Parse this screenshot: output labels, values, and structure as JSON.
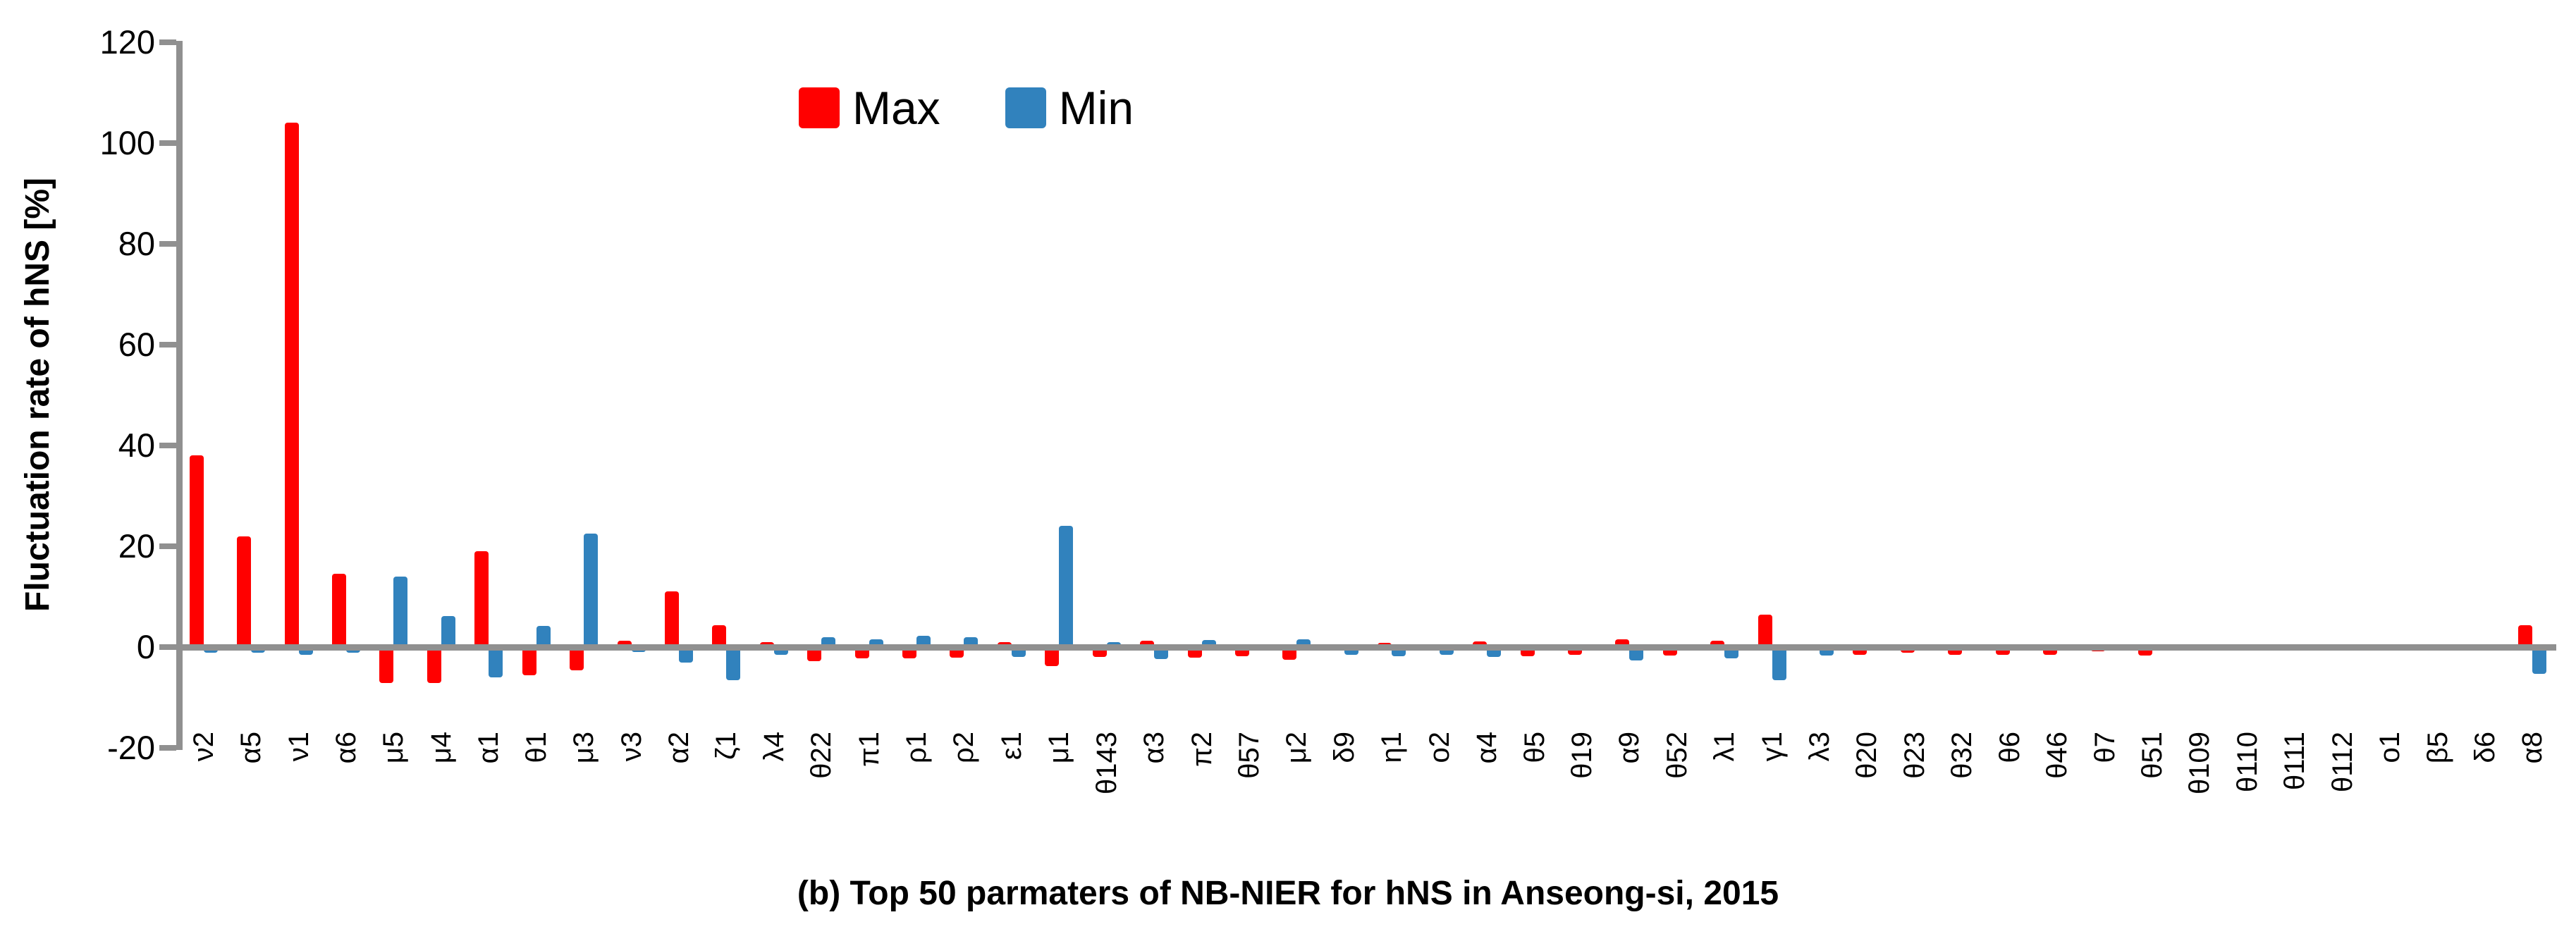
{
  "caption": "(b) Top 50 parmaters of NB-NIER for hNS in Anseong-si, 2015",
  "legend": {
    "max_label": "Max",
    "min_label": "Min"
  },
  "colors": {
    "max": "#FF0000",
    "min": "#3182BD",
    "axis": "#909090",
    "text": "#000000",
    "background": "#FFFFFF"
  },
  "chart_data": {
    "type": "bar",
    "title": "",
    "xlabel": "",
    "ylabel": "Fluctuation rate of hNS [%]",
    "ylim": [
      -20,
      120
    ],
    "yticks": [
      120,
      100,
      80,
      60,
      40,
      20,
      0,
      -20
    ],
    "grid": false,
    "legend_position": "top-center",
    "categories": [
      "ν2",
      "α5",
      "ν1",
      "α6",
      "μ5",
      "μ4",
      "α1",
      "θ1",
      "μ3",
      "ν3",
      "α2",
      "ζ1",
      "λ4",
      "θ22",
      "π1",
      "ρ1",
      "ρ2",
      "ε1",
      "μ1",
      "θ143",
      "α3",
      "π2",
      "θ57",
      "μ2",
      "δ9",
      "η1",
      "o2",
      "α4",
      "θ5",
      "θ19",
      "α9",
      "θ52",
      "λ1",
      "γ1",
      "λ3",
      "θ20",
      "θ23",
      "θ32",
      "θ6",
      "θ46",
      "θ7",
      "θ51",
      "θ109",
      "θ110",
      "θ111",
      "θ112",
      "o1",
      "β5",
      "δ6",
      "α8"
    ],
    "series": [
      {
        "name": "Max",
        "color": "#FF0000",
        "values": [
          38,
          22,
          104,
          14.5,
          -6.6,
          -6.6,
          19,
          -5,
          -4,
          1.3,
          11,
          4.3,
          1,
          -2.2,
          -1.7,
          -1.7,
          -1.5,
          1,
          -3.2,
          -1.4,
          1.3,
          -1.5,
          -1.2,
          -2,
          0.5,
          0.8,
          0.3,
          1.1,
          -1.2,
          -1,
          1.5,
          -1.1,
          1.2,
          6.5,
          0.2,
          -1,
          -0.5,
          -1,
          -1,
          -1,
          -0.3,
          -1.1,
          0,
          0,
          0,
          0,
          0,
          0,
          0,
          4.3
        ]
      },
      {
        "name": "Min",
        "color": "#3182BD",
        "values": [
          -0.5,
          -0.5,
          -1,
          -0.5,
          14,
          6.2,
          -5.5,
          4.2,
          22.5,
          -0.4,
          -2.5,
          -6,
          -1,
          1.9,
          1.6,
          2.2,
          2,
          -1.4,
          24,
          1,
          -1.8,
          1.4,
          0.6,
          1.6,
          -1,
          -1.2,
          -1,
          -1.4,
          0.6,
          0.6,
          -2.1,
          0.2,
          -1.7,
          -6,
          -1.1,
          0.2,
          0.2,
          0.5,
          0.4,
          0.3,
          0.2,
          0.2,
          0,
          0,
          0,
          0,
          0,
          0,
          0,
          -4.7
        ]
      }
    ]
  }
}
